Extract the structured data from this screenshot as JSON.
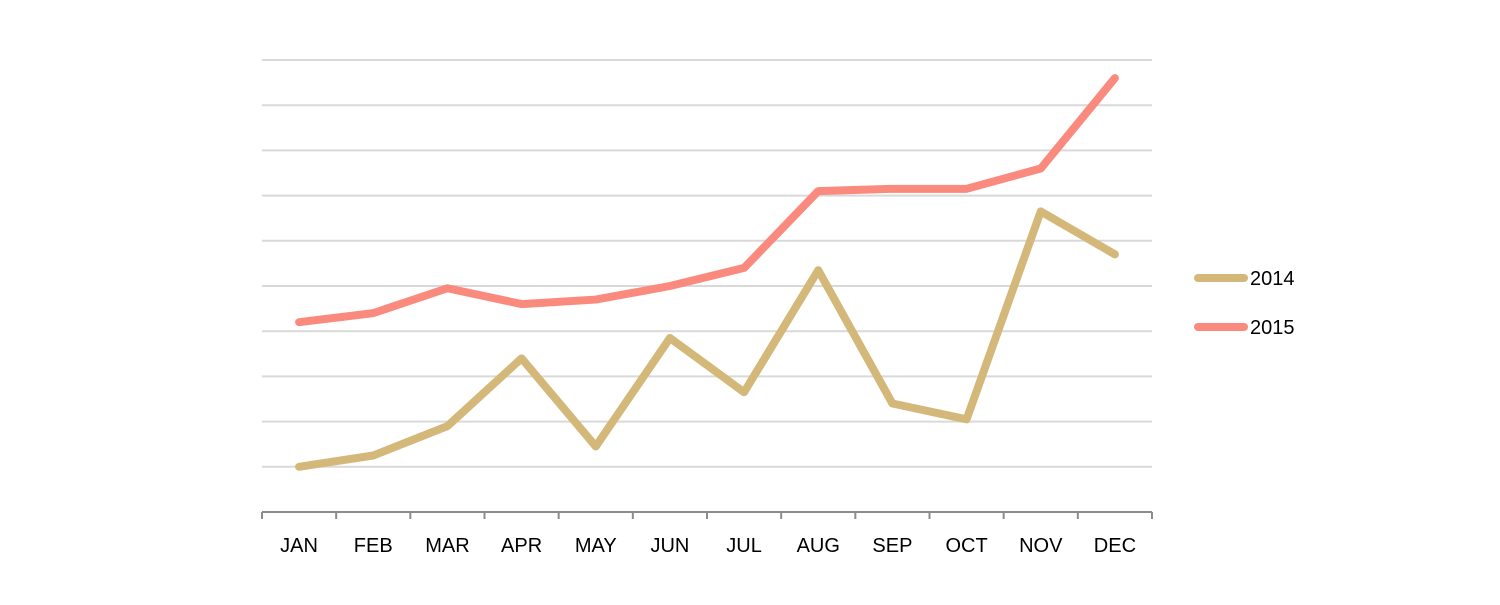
{
  "chart_data": {
    "type": "line",
    "title": "",
    "xlabel": "",
    "ylabel": "",
    "categories": [
      "JAN",
      "FEB",
      "MAR",
      "APR",
      "MAY",
      "JUN",
      "JUL",
      "AUG",
      "SEP",
      "OCT",
      "NOV",
      "DEC"
    ],
    "series": [
      {
        "name": "2014",
        "color": "#D4B87A",
        "values": [
          1.0,
          1.25,
          1.9,
          3.4,
          1.45,
          3.85,
          2.65,
          5.35,
          2.4,
          2.05,
          6.65,
          5.7
        ]
      },
      {
        "name": "2015",
        "color": "#FA8A7E",
        "values": [
          4.2,
          4.4,
          4.95,
          4.6,
          4.7,
          5.0,
          5.4,
          7.1,
          7.15,
          7.15,
          7.6,
          9.6
        ]
      }
    ],
    "ylim": [
      0,
      10
    ],
    "y_gridlines": [
      1,
      2,
      3,
      4,
      5,
      6,
      7,
      8,
      9,
      10
    ],
    "y_tick_labels_shown": false,
    "grid": true,
    "grid_color": "#D9D9D9",
    "axis_color": "#8C8C8C",
    "legend_position": "right"
  }
}
